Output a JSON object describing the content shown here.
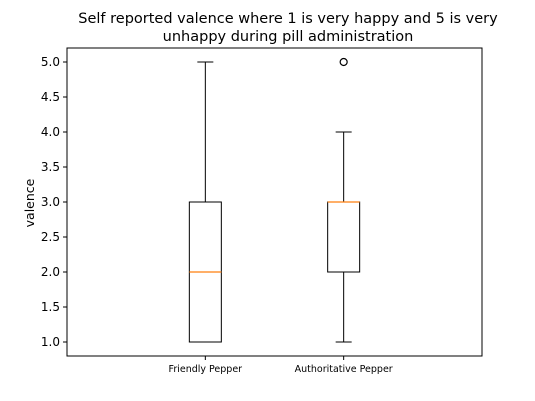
{
  "chart_data": {
    "type": "box",
    "title_lines": [
      "Self reported valence where 1 is very happy and 5 is very",
      "unhappy during pill administration"
    ],
    "xlabel": "",
    "ylabel": "valence",
    "categories": [
      "Friendly Pepper",
      "Authoritative Pepper"
    ],
    "boxes": [
      {
        "whisker_low": 1.0,
        "q1": 1.0,
        "median": 2.0,
        "q3": 3.0,
        "whisker_high": 5.0,
        "outliers": []
      },
      {
        "whisker_low": 1.0,
        "q1": 2.0,
        "median": 3.0,
        "q3": 3.0,
        "whisker_high": 4.0,
        "outliers": [
          5.0
        ]
      }
    ],
    "ylim": [
      0.8,
      5.2
    ],
    "yticks": [
      1.0,
      1.5,
      2.0,
      2.5,
      3.0,
      3.5,
      4.0,
      4.5,
      5.0
    ],
    "ytick_labels": [
      "1.0",
      "1.5",
      "2.0",
      "2.5",
      "3.0",
      "3.5",
      "4.0",
      "4.5",
      "5.0"
    ],
    "grid": false,
    "colors": {
      "box": "#000000",
      "median": "#ff7f0e",
      "whisker": "#000000",
      "outlier": "#000000"
    }
  }
}
